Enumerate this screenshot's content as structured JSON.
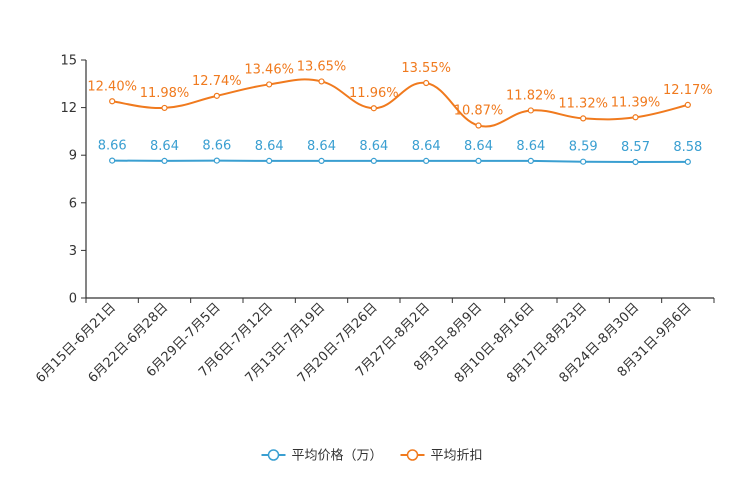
{
  "chart_data": {
    "type": "line",
    "title": "",
    "xlabel": "",
    "ylabel": "",
    "ylim": [
      0,
      15
    ],
    "yticks": [
      0,
      3,
      6,
      9,
      12,
      15
    ],
    "categories": [
      "6月15日-6月21日",
      "6月22日-6月28日",
      "6月29日-7月5日",
      "7月6日-7月12日",
      "7月13日-7月19日",
      "7月20日-7月26日",
      "7月27日-8月2日",
      "8月3日-8月9日",
      "8月10日-8月16日",
      "8月17日-8月23日",
      "8月24日-8月30日",
      "8月31日-9月6日"
    ],
    "series": [
      {
        "name": "平均价格（万）",
        "color": "#3a9fd1",
        "smooth": false,
        "values": [
          8.66,
          8.64,
          8.66,
          8.64,
          8.64,
          8.64,
          8.64,
          8.64,
          8.64,
          8.59,
          8.57,
          8.58
        ],
        "labels": [
          "8.66",
          "8.64",
          "8.66",
          "8.64",
          "8.64",
          "8.64",
          "8.64",
          "8.64",
          "8.64",
          "8.59",
          "8.57",
          "8.58"
        ]
      },
      {
        "name": "平均折扣",
        "color": "#f07a1e",
        "smooth": true,
        "values": [
          12.4,
          11.98,
          12.74,
          13.46,
          13.65,
          11.96,
          13.55,
          10.87,
          11.82,
          11.32,
          11.39,
          12.17
        ],
        "labels": [
          "12.40%",
          "11.98%",
          "12.74%",
          "13.46%",
          "13.65%",
          "11.96%",
          "13.55%",
          "10.87%",
          "11.82%",
          "11.32%",
          "11.39%",
          "12.17%"
        ]
      }
    ],
    "legend": {
      "position": "bottom-center"
    }
  }
}
